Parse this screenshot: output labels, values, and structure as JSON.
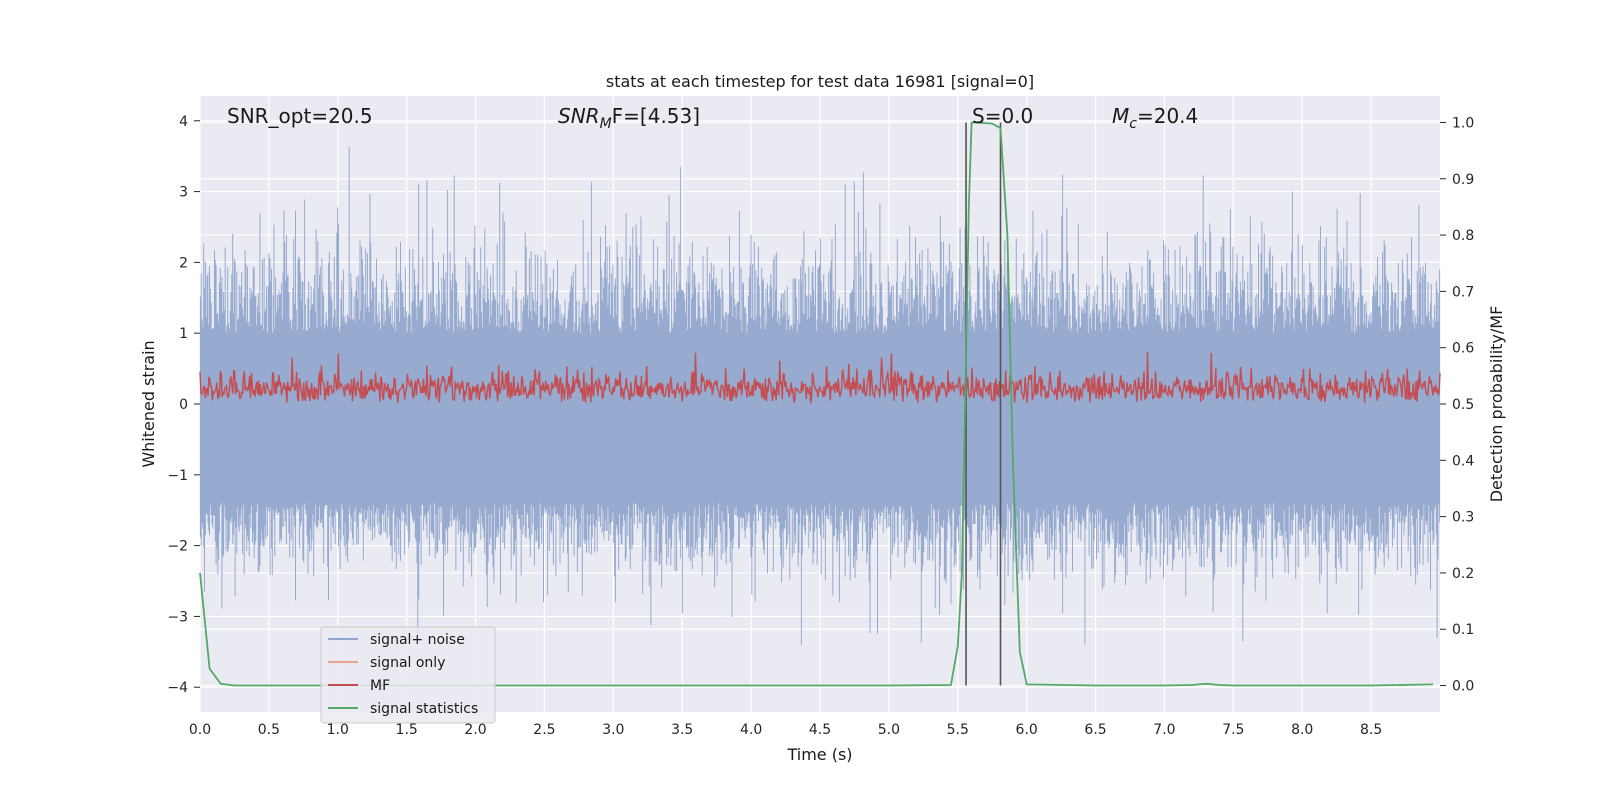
{
  "chart_data": {
    "type": "line",
    "title": "stats at each timestep for test data 16981 [signal=0]",
    "xlabel": "Time (s)",
    "ylabel_left": "Whitened strain",
    "ylabel_right": "Detection probability/MF",
    "xlim": [
      0.0,
      9.0
    ],
    "ylim_left": [
      -4.35,
      4.35
    ],
    "ylim_right": [
      -0.047,
      1.047
    ],
    "x_ticks": [
      "0.0",
      "0.5",
      "1.0",
      "1.5",
      "2.0",
      "2.5",
      "3.0",
      "3.5",
      "4.0",
      "4.5",
      "5.0",
      "5.5",
      "6.0",
      "6.5",
      "7.0",
      "7.5",
      "8.0",
      "8.5"
    ],
    "y_ticks_left": [
      "4",
      "3",
      "2",
      "1",
      "0",
      "−1",
      "−2",
      "−3",
      "−4"
    ],
    "y_ticks_right": [
      "1.0",
      "0.9",
      "0.8",
      "0.7",
      "0.6",
      "0.5",
      "0.4",
      "0.3",
      "0.2",
      "0.1",
      "0.0"
    ],
    "grid": true,
    "legend_position": "lower-left",
    "annotations": {
      "snr_opt": "SNR_opt=20.5",
      "snr_mf_prefix": "SNR",
      "snr_mf_sub": "M",
      "snr_mf_suffix": "F=[4.53]",
      "s_val": "S=0.0",
      "mc_prefix": "M",
      "mc_sub": "c",
      "mc_suffix": "=20.4"
    },
    "vertical_markers": [
      5.56,
      5.81
    ],
    "series": [
      {
        "name": "signal+ noise",
        "color": "#92a6cc",
        "axis": "left",
        "description": "whitened noise, amplitude about ±2.5 with spikes up to ±4"
      },
      {
        "name": "signal only",
        "color": "#e8a58b",
        "axis": "left",
        "values": []
      },
      {
        "name": "MF",
        "color": "#c44e52",
        "axis": "right",
        "description": "matched filter output, about 0.50 to 0.62"
      },
      {
        "name": "signal statistics",
        "color": "#55a868",
        "axis": "right",
        "x": [
          0.0,
          0.07,
          0.15,
          0.25,
          0.5,
          1.0,
          2.0,
          3.0,
          4.0,
          5.0,
          5.45,
          5.5,
          5.53,
          5.56,
          5.58,
          5.6,
          5.63,
          5.75,
          5.81,
          5.86,
          5.9,
          5.95,
          6.0,
          6.5,
          7.0,
          7.2,
          7.3,
          7.4,
          7.5,
          8.0,
          8.5,
          8.95
        ],
        "values": [
          0.2,
          0.03,
          0.003,
          0.0,
          0.0,
          0.0,
          0.0,
          0.0,
          0.0,
          0.0,
          0.001,
          0.07,
          0.2,
          0.58,
          0.85,
          1.0,
          1.0,
          0.998,
          0.99,
          0.8,
          0.4,
          0.06,
          0.002,
          0.0,
          0.0,
          0.001,
          0.003,
          0.001,
          0.0,
          0.0,
          0.0,
          0.002
        ]
      }
    ]
  }
}
